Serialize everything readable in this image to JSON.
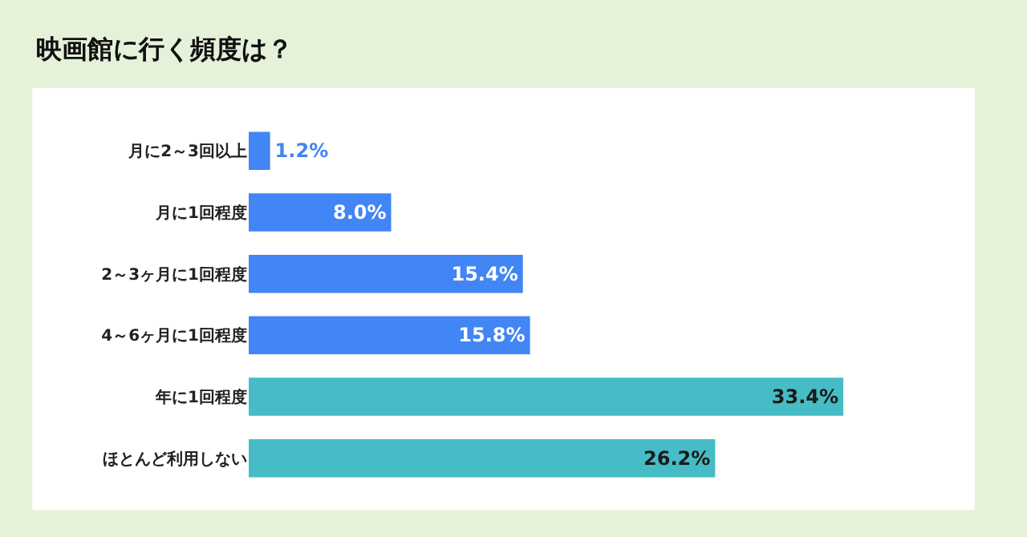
{
  "chart_data": {
    "type": "bar",
    "orientation": "horizontal",
    "tick_labels": "y",
    "title": "映画館に行く頻度は？",
    "categories": [
      "月に2～3回以上",
      "月に1回程度",
      "2～3ヶ月に1回程度",
      "4～6ヶ月に1回程度",
      "年に1回程度",
      "ほとんど利用しない"
    ],
    "values": [
      1.2,
      8.0,
      15.4,
      15.8,
      33.4,
      26.2
    ],
    "colors": [
      "#4285f4",
      "#4285f4",
      "#4285f4",
      "#4285f4",
      "#45bcc6",
      "#45bcc6"
    ],
    "value_labels": [
      "1.2%",
      "8.0%",
      "15.4%",
      "15.8%",
      "33.4%",
      "26.2%"
    ],
    "legend": false
  }
}
